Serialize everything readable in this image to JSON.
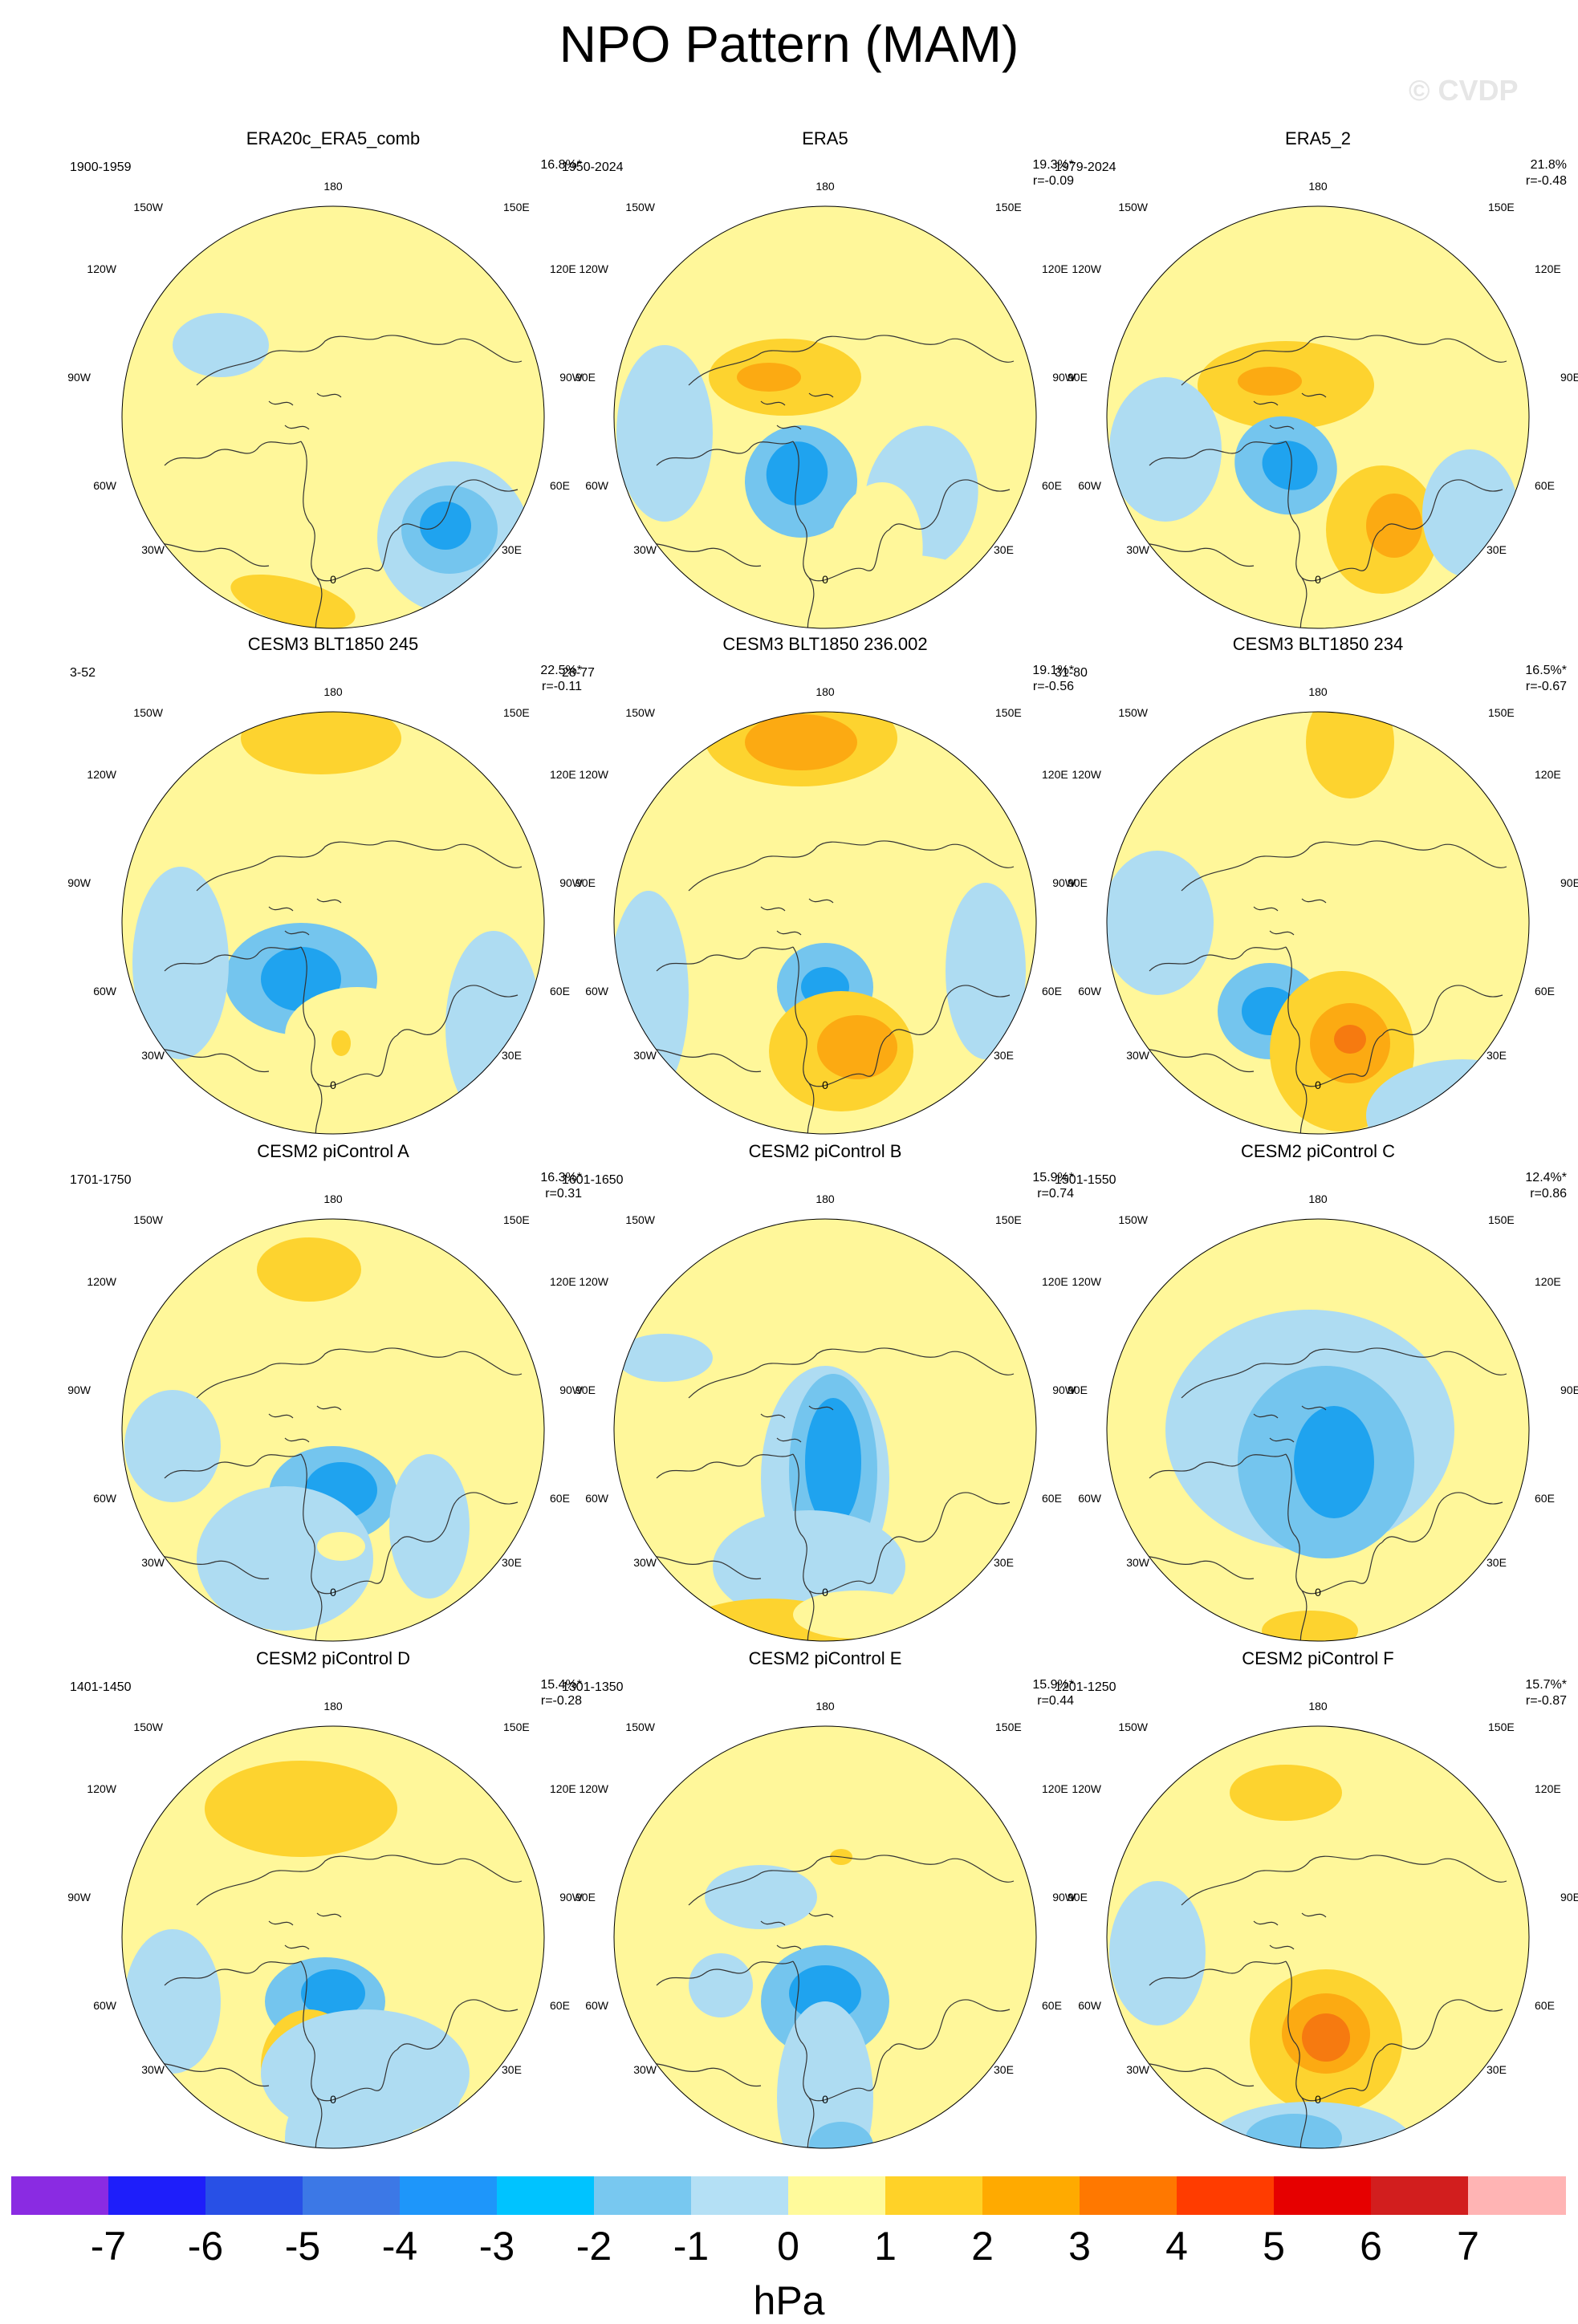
{
  "title": "NPO Pattern (MAM)",
  "watermark": "© CVDP",
  "lon_labels": {
    "top": "180",
    "top_left": "150W",
    "top_right": "150E",
    "upper_left": "120W",
    "upper_right": "120E",
    "left": "90W",
    "right": "90E",
    "lower_left": "60W",
    "lower_right": "60E",
    "bottom_left": "30W",
    "bottom_right": "30E",
    "bottom": "0"
  },
  "colors": {
    "neg1": "#aedcf2",
    "neg2": "#74c5ee",
    "neg3": "#1fa3ef",
    "neg4": "#0fb8f5",
    "pos1": "#fff79a",
    "pos2": "#fdd32f",
    "pos3": "#fcaa12",
    "pos4": "#f67a10",
    "coast": "#333333"
  },
  "panels": [
    {
      "title": "ERA20c_ERA5_comb",
      "period": "1900-1959",
      "pct": "16.8%*",
      "r": ""
    },
    {
      "title": "ERA5",
      "period": "1950-2024",
      "pct": "19.3%*",
      "r": "r=-0.09"
    },
    {
      "title": "ERA5_2",
      "period": "1979-2024",
      "pct": "21.8%",
      "r": "r=-0.48"
    },
    {
      "title": "CESM3 BLT1850 245",
      "period": "3-52",
      "pct": "22.5%*",
      "r": "r=-0.11"
    },
    {
      "title": "CESM3 BLT1850 236.002",
      "period": "28-77",
      "pct": "19.1%*",
      "r": "r=-0.56"
    },
    {
      "title": "CESM3 BLT1850 234",
      "period": "31-80",
      "pct": "16.5%*",
      "r": "r=-0.67"
    },
    {
      "title": "CESM2 piControl A",
      "period": "1701-1750",
      "pct": "16.3%*",
      "r": "r=0.31"
    },
    {
      "title": "CESM2 piControl B",
      "period": "1601-1650",
      "pct": "15.9%*",
      "r": "r=0.74"
    },
    {
      "title": "CESM2 piControl C",
      "period": "1501-1550",
      "pct": "12.4%*",
      "r": "r=0.86"
    },
    {
      "title": "CESM2 piControl D",
      "period": "1401-1450",
      "pct": "15.4%*",
      "r": "r=-0.28"
    },
    {
      "title": "CESM2 piControl E",
      "period": "1301-1350",
      "pct": "15.9%*",
      "r": "r=0.44"
    },
    {
      "title": "CESM2 piControl F",
      "period": "1201-1250",
      "pct": "15.7%*",
      "r": "r=-0.87"
    }
  ],
  "colorbar": {
    "units": "hPa",
    "ticks": [
      "-7",
      "-6",
      "-5",
      "-4",
      "-3",
      "-2",
      "-1",
      "0",
      "1",
      "2",
      "3",
      "4",
      "5",
      "6",
      "7"
    ],
    "colors": [
      "#8a2be2",
      "#1e1efa",
      "#2850e6",
      "#3c78e6",
      "#1e96fa",
      "#00c3ff",
      "#78c8f0",
      "#b4e0f5",
      "#fffa9b",
      "#ffd228",
      "#ffaa00",
      "#ff7800",
      "#ff3c00",
      "#e60000",
      "#d21e1e",
      "#ffb4b4"
    ]
  }
}
